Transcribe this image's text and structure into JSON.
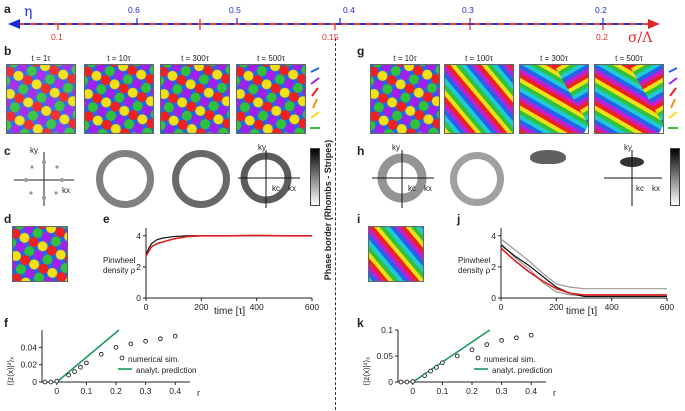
{
  "panels": {
    "a": "a",
    "b": "b",
    "c": "c",
    "d": "d",
    "e": "e",
    "f": "f",
    "g": "g",
    "h": "h",
    "i": "i",
    "j": "j",
    "k": "k"
  },
  "scale": {
    "eta_symbol": "η",
    "sigma_symbol": "σ/Λ",
    "eta_ticks": [
      "0.6",
      "0.5",
      "0.4",
      "0.3",
      "0.2"
    ],
    "sigma_ticks": [
      "0.1",
      "0.15",
      "0.2"
    ]
  },
  "phase_border": "Phase border (Rhombs - Stripes)",
  "rhombs_times": [
    "t = 1τ",
    "t = 10τ",
    "t = 300τ",
    "t = 500τ"
  ],
  "stripes_times": [
    "t = 10τ",
    "t = 100τ",
    "t = 300τ",
    "t = 500τ"
  ],
  "spectrum_labels": {
    "ky": "ky",
    "kx": "kx",
    "kc": "kc"
  },
  "colors": {
    "axis_blue": "#1a2bd6",
    "axis_red": "#e0282a",
    "curve_red": "#e02020",
    "prediction_green": "#1a9a5a",
    "grey": "#888888"
  },
  "charts": {
    "e": {
      "ylabel_line1": "Pinwheel",
      "ylabel_line2": "density ρ",
      "xlabel": "time [τ]",
      "xticks": [
        "0",
        "200",
        "400",
        "600"
      ],
      "yticks": [
        "0",
        "2",
        "4"
      ]
    },
    "j": {
      "ylabel_line1": "Pinwheel",
      "ylabel_line2": "density ρ",
      "xlabel": "time [τ]",
      "xticks": [
        "0",
        "200",
        "400",
        "600"
      ],
      "yticks": [
        "0",
        "2",
        "4"
      ]
    },
    "f": {
      "ylabel": "⟨|z(x)|²⟩ₓ",
      "xlabel": "r",
      "xticks": [
        "0",
        "0.1",
        "0.2",
        "0.3",
        "0.4"
      ],
      "yticks": [
        "0",
        "0.02",
        "0.04"
      ],
      "legend_sim": "numerical sim.",
      "legend_pred": "analyt. prediction"
    },
    "k": {
      "ylabel": "⟨|z(x)|²⟩ₓ",
      "xlabel": "r",
      "xticks": [
        "0",
        "0.1",
        "0.2",
        "0.3",
        "0.4"
      ],
      "yticks": [
        "0",
        "0.05",
        "0.1"
      ],
      "legend_sim": "numerical sim.",
      "legend_pred": "analyt. prediction"
    }
  },
  "chart_data": [
    {
      "id": "e",
      "type": "line",
      "xlim": [
        0,
        600
      ],
      "ylim": [
        0,
        4.5
      ],
      "series": [
        {
          "name": "black",
          "color": "#111111",
          "x": [
            0,
            10,
            20,
            40,
            60,
            100,
            150,
            200,
            300,
            400,
            500,
            600
          ],
          "y": [
            2.8,
            3.2,
            3.5,
            3.75,
            3.85,
            3.95,
            4.0,
            4.0,
            4.0,
            4.0,
            4.0,
            4.0
          ]
        },
        {
          "name": "red",
          "color": "#e02020",
          "x": [
            0,
            10,
            20,
            40,
            60,
            100,
            150,
            200,
            300,
            400,
            500,
            600
          ],
          "y": [
            2.7,
            3.0,
            3.3,
            3.5,
            3.6,
            3.8,
            3.95,
            4.0,
            4.0,
            4.02,
            4.0,
            4.0
          ]
        }
      ]
    },
    {
      "id": "j",
      "type": "line",
      "xlim": [
        0,
        600
      ],
      "ylim": [
        0,
        4.5
      ],
      "series": [
        {
          "name": "grey1",
          "color": "#999999",
          "x": [
            0,
            50,
            100,
            150,
            200,
            250,
            300,
            600
          ],
          "y": [
            3.8,
            3.1,
            2.4,
            1.6,
            0.9,
            0.7,
            0.6,
            0.6
          ]
        },
        {
          "name": "grey2",
          "color": "#999999",
          "x": [
            0,
            50,
            100,
            150,
            200,
            250,
            300,
            600
          ],
          "y": [
            3.5,
            2.6,
            1.9,
            1.0,
            0.4,
            0.2,
            0.15,
            0.15
          ]
        },
        {
          "name": "black",
          "color": "#111111",
          "x": [
            0,
            50,
            100,
            150,
            200,
            250,
            300,
            600
          ],
          "y": [
            3.4,
            2.7,
            2.1,
            1.4,
            0.7,
            0.3,
            0.1,
            0.1
          ]
        },
        {
          "name": "red",
          "color": "#e02020",
          "x": [
            0,
            50,
            100,
            150,
            200,
            250,
            300,
            600
          ],
          "y": [
            3.2,
            2.4,
            1.7,
            1.1,
            0.6,
            0.3,
            0.2,
            0.2
          ]
        }
      ]
    },
    {
      "id": "f",
      "type": "scatter",
      "xlim": [
        -0.05,
        0.45
      ],
      "ylim": [
        0,
        0.06
      ],
      "points": {
        "x": [
          -0.04,
          -0.02,
          0.0,
          0.04,
          0.06,
          0.08,
          0.1,
          0.15,
          0.2,
          0.25,
          0.3,
          0.35,
          0.4
        ],
        "y": [
          0.0,
          0.0,
          0.001,
          0.008,
          0.012,
          0.017,
          0.022,
          0.032,
          0.04,
          0.044,
          0.047,
          0.05,
          0.053
        ]
      },
      "prediction": {
        "x": [
          0.0,
          0.21
        ],
        "y": [
          0.0,
          0.06
        ]
      }
    },
    {
      "id": "k",
      "type": "scatter",
      "xlim": [
        -0.05,
        0.45
      ],
      "ylim": [
        0,
        0.1
      ],
      "points": {
        "x": [
          -0.04,
          -0.02,
          0.0,
          0.04,
          0.06,
          0.08,
          0.1,
          0.15,
          0.2,
          0.25,
          0.3,
          0.35,
          0.4
        ],
        "y": [
          0.0,
          0.0,
          0.001,
          0.012,
          0.021,
          0.028,
          0.037,
          0.05,
          0.062,
          0.072,
          0.08,
          0.085,
          0.09
        ]
      },
      "prediction": {
        "x": [
          0.0,
          0.26
        ],
        "y": [
          0.0,
          0.1
        ]
      }
    }
  ]
}
